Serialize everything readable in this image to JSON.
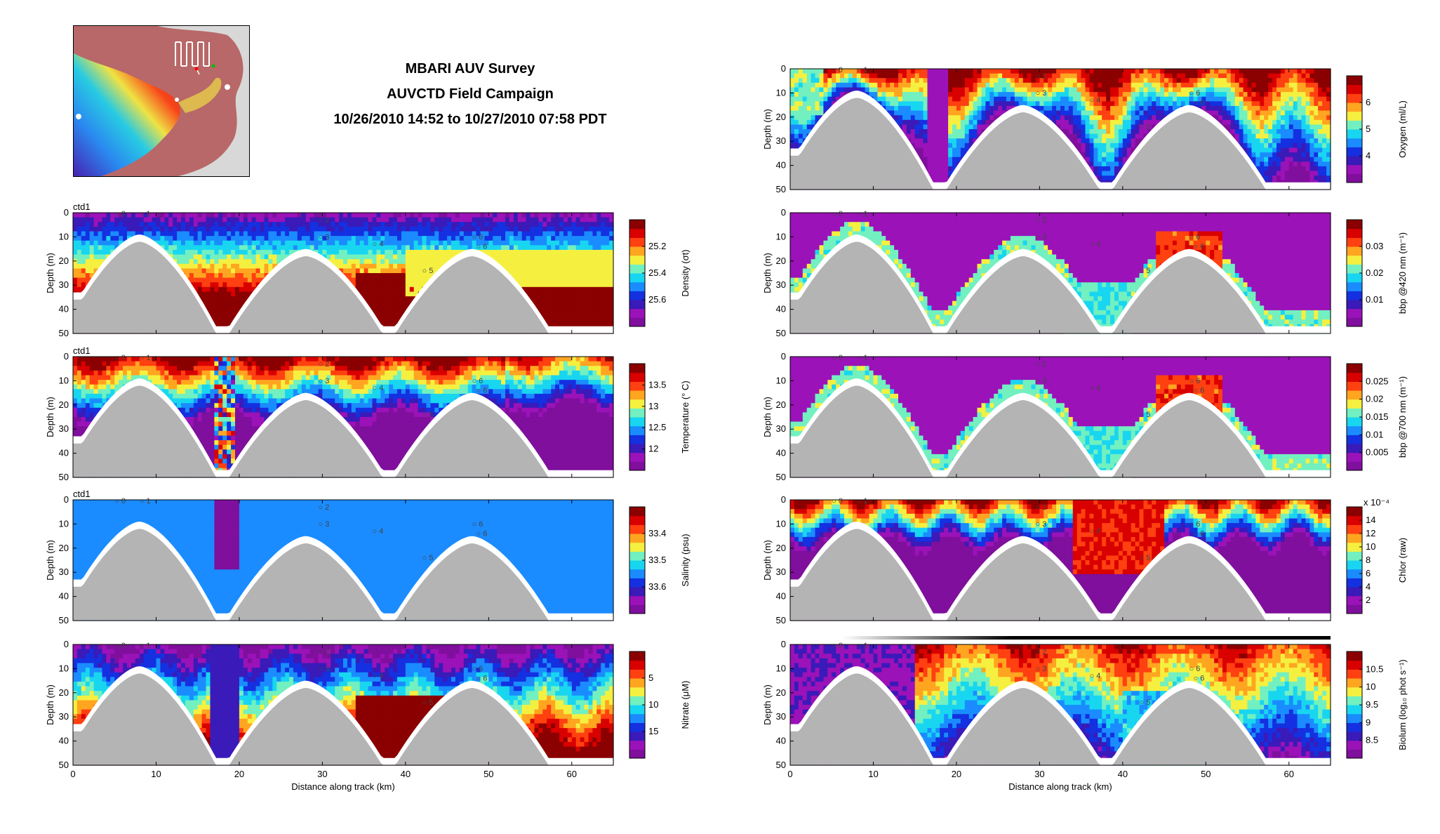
{
  "header": {
    "title_line1": "MBARI AUV Survey",
    "title_line2": "AUVCTD Field Campaign",
    "title_line3": "10/26/2010 14:52 to 10/27/2010 07:58 PDT"
  },
  "colors": {
    "bathymetry": "#b4b4b4",
    "cmap": [
      "#7f0f9c",
      "#9b12b8",
      "#3a1ab8",
      "#1430e0",
      "#1a8cff",
      "#18d6f0",
      "#72f0c0",
      "#f5f040",
      "#ffa520",
      "#ff4010",
      "#d90000",
      "#8b0000"
    ]
  },
  "chart_data": [
    {
      "id": "density",
      "type": "heatmap",
      "column": "left",
      "row": 0,
      "tag": "ctd1",
      "ylabel": "Depth (m)",
      "ylim": [
        0,
        50
      ],
      "yticks": [
        "0",
        "10",
        "20",
        "30",
        "40",
        "50"
      ],
      "xlim": [
        0,
        65
      ],
      "xticks": [
        "0",
        "10",
        "20",
        "30",
        "40",
        "50",
        "60"
      ],
      "xlabel": "",
      "colorbar_label": "Density (σt)",
      "colorbar_ticks": [
        "25.2",
        "25.4",
        "25.6"
      ],
      "colorbar_reversed": true,
      "mooring_labels": [
        "0",
        "1",
        "2",
        "3",
        "4",
        "5",
        "6",
        "6"
      ]
    },
    {
      "id": "temperature",
      "type": "heatmap",
      "column": "left",
      "row": 1,
      "tag": "ctd1",
      "ylabel": "Depth (m)",
      "ylim": [
        0,
        50
      ],
      "yticks": [
        "0",
        "10",
        "20",
        "30",
        "40",
        "50"
      ],
      "xlim": [
        0,
        65
      ],
      "xticks": [
        "0",
        "10",
        "20",
        "30",
        "40",
        "50",
        "60"
      ],
      "xlabel": "",
      "colorbar_label": "Temperature (° C)",
      "colorbar_ticks": [
        "12",
        "12.5",
        "13",
        "13.5"
      ],
      "colorbar_reversed": false,
      "mooring_labels": [
        "0",
        "1",
        "2",
        "3",
        "4",
        "5",
        "6",
        "6"
      ]
    },
    {
      "id": "salinity",
      "type": "heatmap",
      "column": "left",
      "row": 2,
      "tag": "ctd1",
      "ylabel": "Depth (m)",
      "ylim": [
        0,
        50
      ],
      "yticks": [
        "0",
        "10",
        "20",
        "30",
        "40",
        "50"
      ],
      "xlim": [
        0,
        65
      ],
      "xticks": [
        "0",
        "10",
        "20",
        "30",
        "40",
        "50",
        "60"
      ],
      "xlabel": "",
      "colorbar_label": "Salinity (psu)",
      "colorbar_ticks": [
        "33.4",
        "33.5",
        "33.6"
      ],
      "colorbar_reversed": true,
      "mooring_labels": [
        "0",
        "1",
        "2",
        "3",
        "4",
        "5",
        "6",
        "6"
      ]
    },
    {
      "id": "nitrate",
      "type": "heatmap",
      "column": "left",
      "row": 3,
      "tag": "",
      "ylabel": "Depth (m)",
      "ylim": [
        0,
        50
      ],
      "yticks": [
        "0",
        "10",
        "20",
        "30",
        "40",
        "50"
      ],
      "xlim": [
        0,
        65
      ],
      "xticks": [
        "0",
        "10",
        "20",
        "30",
        "40",
        "50",
        "60"
      ],
      "xlabel": "Distance along track (km)",
      "colorbar_label": "Nitrate (μM)",
      "colorbar_ticks": [
        "5",
        "10",
        "15"
      ],
      "colorbar_reversed": true,
      "mooring_labels": [
        "0",
        "1",
        "2",
        "3",
        "4",
        "5",
        "6",
        "6"
      ]
    },
    {
      "id": "oxygen",
      "type": "heatmap",
      "column": "right",
      "row": -1,
      "tag": "",
      "ylabel": "Depth (m)",
      "ylim": [
        0,
        50
      ],
      "yticks": [
        "0",
        "10",
        "20",
        "30",
        "40",
        "50"
      ],
      "xlim": [
        0,
        65
      ],
      "xticks": [
        "0",
        "10",
        "20",
        "30",
        "40",
        "50",
        "60"
      ],
      "xlabel": "",
      "colorbar_label": "Oxygen (ml/L)",
      "colorbar_ticks": [
        "4",
        "5",
        "6"
      ],
      "colorbar_reversed": false,
      "mooring_labels": [
        "0",
        "1",
        "2",
        "3",
        "4",
        "5",
        "6",
        "6"
      ]
    },
    {
      "id": "bbp420",
      "type": "heatmap",
      "column": "right",
      "row": 0,
      "tag": "",
      "ylabel": "Depth (m)",
      "ylim": [
        0,
        50
      ],
      "yticks": [
        "0",
        "10",
        "20",
        "30",
        "40",
        "50"
      ],
      "xlim": [
        0,
        65
      ],
      "xticks": [
        "0",
        "10",
        "20",
        "30",
        "40",
        "50",
        "60"
      ],
      "xlabel": "",
      "colorbar_label": "bbp @420 nm (m⁻¹)",
      "colorbar_ticks": [
        "0.01",
        "0.02",
        "0.03"
      ],
      "colorbar_reversed": false,
      "mooring_labels": [
        "0",
        "1",
        "2",
        "3",
        "4",
        "5",
        "6",
        "6"
      ]
    },
    {
      "id": "bbp700",
      "type": "heatmap",
      "column": "right",
      "row": 1,
      "tag": "",
      "ylabel": "Depth (m)",
      "ylim": [
        0,
        50
      ],
      "yticks": [
        "0",
        "10",
        "20",
        "30",
        "40",
        "50"
      ],
      "xlim": [
        0,
        65
      ],
      "xticks": [
        "0",
        "10",
        "20",
        "30",
        "40",
        "50",
        "60"
      ],
      "xlabel": "",
      "colorbar_label": "bbp @700 nm (m⁻¹)",
      "colorbar_ticks": [
        "0.005",
        "0.01",
        "0.015",
        "0.02",
        "0.025"
      ],
      "colorbar_reversed": false,
      "mooring_labels": [
        "0",
        "1",
        "2",
        "3",
        "4",
        "5",
        "6",
        "6"
      ]
    },
    {
      "id": "chlor",
      "type": "heatmap",
      "column": "right",
      "row": 2,
      "tag": "",
      "ylabel": "Depth (m)",
      "ylim": [
        0,
        50
      ],
      "yticks": [
        "0",
        "10",
        "20",
        "30",
        "40",
        "50"
      ],
      "xlim": [
        0,
        65
      ],
      "xticks": [
        "0",
        "10",
        "20",
        "30",
        "40",
        "50",
        "60"
      ],
      "xlabel": "",
      "colorbar_label": "Chlor (raw)",
      "colorbar_ticks": [
        "2",
        "4",
        "6",
        "8",
        "10",
        "12",
        "14"
      ],
      "colorbar_exponent": "x 10⁻⁴",
      "colorbar_reversed": false,
      "mooring_labels": [
        "0",
        "1",
        "2",
        "3",
        "4",
        "5",
        "6",
        "6"
      ]
    },
    {
      "id": "biolum",
      "type": "heatmap",
      "column": "right",
      "row": 3,
      "tag": "",
      "ylabel": "Depth (m)",
      "ylim": [
        0,
        50
      ],
      "yticks": [
        "0",
        "10",
        "20",
        "30",
        "40",
        "50"
      ],
      "xlim": [
        0,
        65
      ],
      "xticks": [
        "0",
        "10",
        "20",
        "30",
        "40",
        "50",
        "60"
      ],
      "xlabel": "Distance along track (km)",
      "colorbar_label": "Biolum (log₁₀ phot s⁻¹)",
      "colorbar_ticks": [
        "8.5",
        "9",
        "9.5",
        "10",
        "10.5"
      ],
      "colorbar_reversed": false,
      "mooring_labels": [
        "0",
        "1",
        "2",
        "3",
        "4",
        "5",
        "6",
        "6"
      ]
    }
  ]
}
